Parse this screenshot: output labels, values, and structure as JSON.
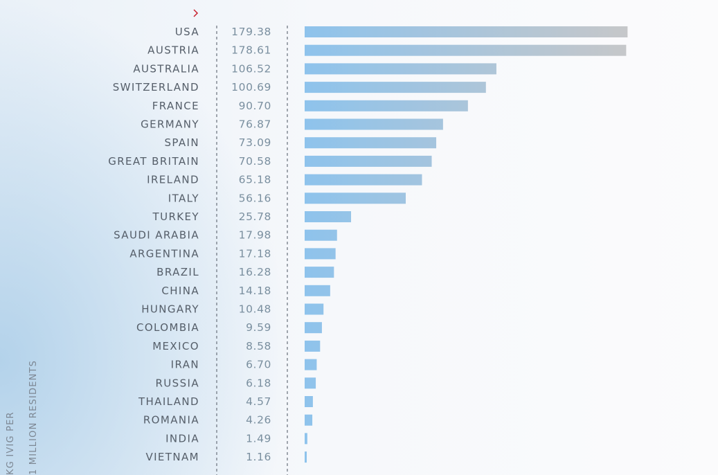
{
  "chart_data": {
    "type": "bar",
    "orientation": "horizontal",
    "ylabel": "KG IVIG PER 1 MILLION RESIDENTS",
    "ylabel_lines": [
      "KG IVIG PER",
      "1 MILLION RESIDENTS"
    ],
    "categories": [
      "USA",
      "AUSTRIA",
      "AUSTRALIA",
      "SWITZERLAND",
      "FRANCE",
      "GERMANY",
      "SPAIN",
      "GREAT BRITAIN",
      "IRELAND",
      "ITALY",
      "TURKEY",
      "SAUDI ARABIA",
      "ARGENTINA",
      "BRAZIL",
      "CHINA",
      "HUNGARY",
      "COLOMBIA",
      "MEXICO",
      "IRAN",
      "RUSSIA",
      "THAILAND",
      "ROMANIA",
      "INDIA",
      "VIETNAM"
    ],
    "values": [
      179.38,
      178.61,
      106.52,
      100.69,
      90.7,
      76.87,
      73.09,
      70.58,
      65.18,
      56.16,
      25.78,
      17.98,
      17.18,
      16.28,
      14.18,
      10.48,
      9.59,
      8.58,
      6.7,
      6.18,
      4.57,
      4.26,
      1.49,
      1.16
    ],
    "value_labels": [
      "179.38",
      "178.61",
      "106.52",
      "100.69",
      "90.70",
      "76.87",
      "73.09",
      "70.58",
      "65.18",
      "56.16",
      "25.78",
      "17.98",
      "17.18",
      "16.28",
      "14.18",
      "10.48",
      "9.59",
      "8.58",
      "6.70",
      "6.18",
      "4.57",
      "4.26",
      "1.49",
      "1.16"
    ],
    "xlim": [
      0,
      180
    ],
    "grid": false,
    "legend": "none",
    "colors": {
      "bar_start": "#8ec3ec",
      "bar_end": "#c6c7c9",
      "category_text": "#555e69",
      "value_text": "#7a8f9f",
      "accent": "#c8202e"
    }
  },
  "icons": {
    "marker": "chevron-right-icon"
  }
}
